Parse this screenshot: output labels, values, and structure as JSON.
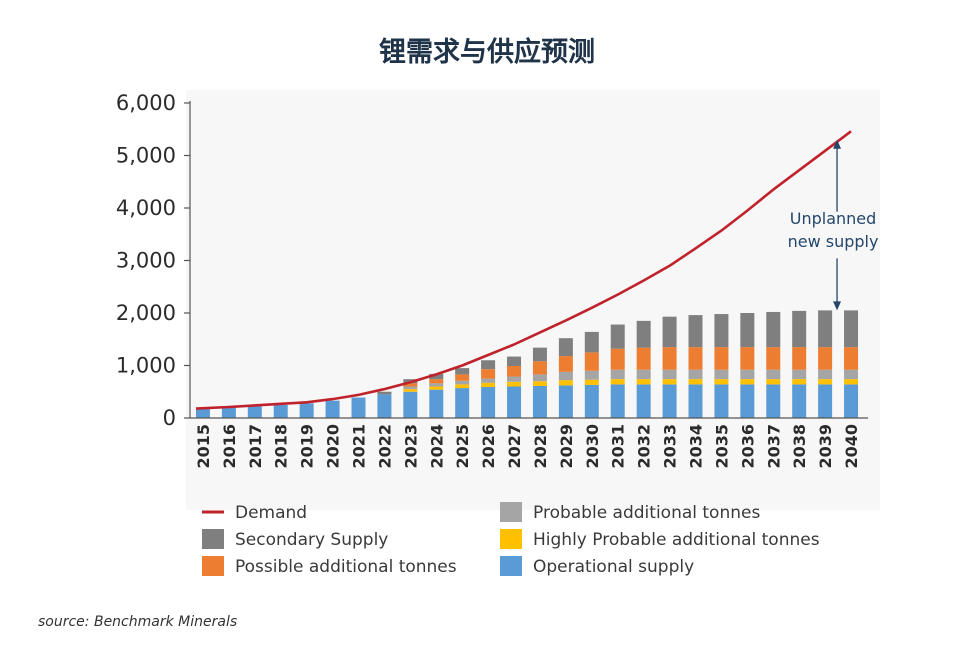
{
  "title": "锂需求与供应预测",
  "source": "source: Benchmark Minerals",
  "chart_data": {
    "type": "bar",
    "stacked": true,
    "title": "锂需求与供应预测",
    "xlabel": "",
    "ylabel": "",
    "ylim": [
      0,
      6000
    ],
    "yticks": [
      0,
      1000,
      2000,
      3000,
      4000,
      5000,
      6000
    ],
    "ytick_labels": [
      "0",
      "1,000",
      "2,000",
      "3,000",
      "4,000",
      "5,000",
      "6,000"
    ],
    "categories": [
      "2015",
      "2016",
      "2017",
      "2018",
      "2019",
      "2020",
      "2021",
      "2022",
      "2023",
      "2024",
      "2025",
      "2026",
      "2027",
      "2028",
      "2029",
      "2030",
      "2031",
      "2032",
      "2033",
      "2034",
      "2035",
      "2036",
      "2037",
      "2038",
      "2039",
      "2040"
    ],
    "legend_position": "bottom",
    "series": [
      {
        "name": "Operational supply",
        "color": "#5b9bd5",
        "values": [
          180,
          200,
          220,
          250,
          280,
          330,
          390,
          450,
          500,
          540,
          570,
          590,
          600,
          610,
          620,
          630,
          640,
          640,
          640,
          640,
          640,
          640,
          640,
          640,
          640,
          640
        ]
      },
      {
        "name": "Highly Probable additional tonnes",
        "color": "#ffc000",
        "values": [
          0,
          0,
          0,
          0,
          0,
          0,
          0,
          0,
          50,
          60,
          70,
          80,
          90,
          90,
          100,
          100,
          100,
          100,
          100,
          100,
          100,
          100,
          100,
          100,
          100,
          100
        ]
      },
      {
        "name": "Probable additional tonnes",
        "color": "#a5a5a5",
        "values": [
          0,
          0,
          0,
          0,
          0,
          0,
          0,
          0,
          50,
          60,
          70,
          80,
          100,
          130,
          160,
          170,
          180,
          180,
          180,
          180,
          180,
          180,
          180,
          180,
          180,
          180
        ]
      },
      {
        "name": "Possible additional tonnes",
        "color": "#ed7d31",
        "values": [
          0,
          0,
          0,
          0,
          0,
          0,
          0,
          0,
          60,
          80,
          120,
          180,
          200,
          250,
          300,
          350,
          400,
          420,
          430,
          430,
          430,
          430,
          430,
          430,
          430,
          430
        ]
      },
      {
        "name": "Secondary Supply",
        "color": "#7f7f7f",
        "values": [
          0,
          0,
          0,
          0,
          0,
          0,
          0,
          50,
          80,
          100,
          120,
          170,
          180,
          260,
          340,
          390,
          460,
          510,
          580,
          610,
          630,
          650,
          670,
          690,
          700,
          700
        ]
      }
    ],
    "line": {
      "name": "Demand",
      "color": "#c0222b",
      "values": [
        180,
        210,
        240,
        270,
        300,
        360,
        440,
        550,
        680,
        830,
        1000,
        1200,
        1400,
        1630,
        1860,
        2100,
        2350,
        2620,
        2900,
        3230,
        3570,
        3950,
        4350,
        4720,
        5090,
        5460
      ]
    },
    "annotation": {
      "text_lines": [
        "Unplanned",
        "new supply"
      ],
      "x": "2040",
      "y_range": [
        2050,
        5300
      ]
    }
  }
}
